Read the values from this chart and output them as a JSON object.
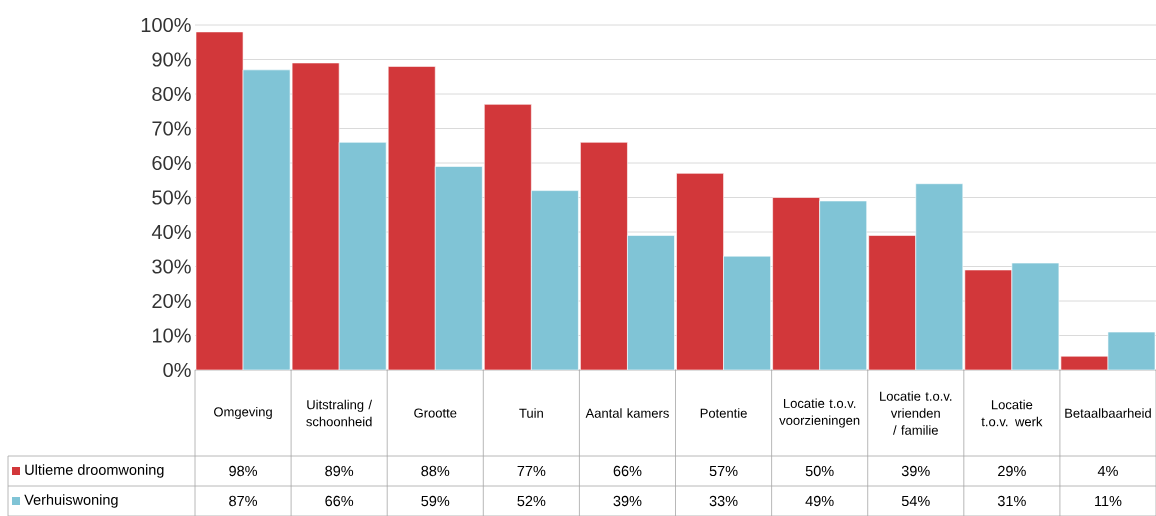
{
  "chart_data": {
    "type": "bar",
    "categories": [
      "Omgeving",
      "Uitstraling / schoonheid",
      "Grootte",
      "Tuin",
      "Aantal kamers",
      "Potentie",
      "Locatie t.o.v. voorzieningen",
      "Locatie t.o.v. vrienden / familie",
      "Locatie t.o.v. werk",
      "Betaalbaarheid"
    ],
    "series": [
      {
        "name": "Ultieme droomwoning",
        "color": "#d2373a",
        "values": [
          98,
          89,
          88,
          77,
          66,
          57,
          50,
          39,
          29,
          4
        ],
        "value_labels": [
          "98%",
          "89%",
          "88%",
          "77%",
          "66%",
          "57%",
          "50%",
          "39%",
          "29%",
          "4%"
        ]
      },
      {
        "name": "Verhuiswoning",
        "color": "#80c4d6",
        "values": [
          87,
          66,
          59,
          52,
          39,
          33,
          49,
          54,
          31,
          11
        ],
        "value_labels": [
          "87%",
          "66%",
          "59%",
          "52%",
          "39%",
          "33%",
          "49%",
          "54%",
          "31%",
          "11%"
        ]
      }
    ],
    "ylim": [
      0,
      100
    ],
    "yticks": [
      {
        "value": 0,
        "label": "0%"
      },
      {
        "value": 10,
        "label": "10%"
      },
      {
        "value": 20,
        "label": "20%"
      },
      {
        "value": 30,
        "label": "30%"
      },
      {
        "value": 40,
        "label": "40%"
      },
      {
        "value": 50,
        "label": "50%"
      },
      {
        "value": 60,
        "label": "60%"
      },
      {
        "value": 70,
        "label": "70%"
      },
      {
        "value": 80,
        "label": "80%"
      },
      {
        "value": 90,
        "label": "90%"
      },
      {
        "value": 100,
        "label": "100%"
      }
    ],
    "grid": "y",
    "legend": "bottom left"
  }
}
